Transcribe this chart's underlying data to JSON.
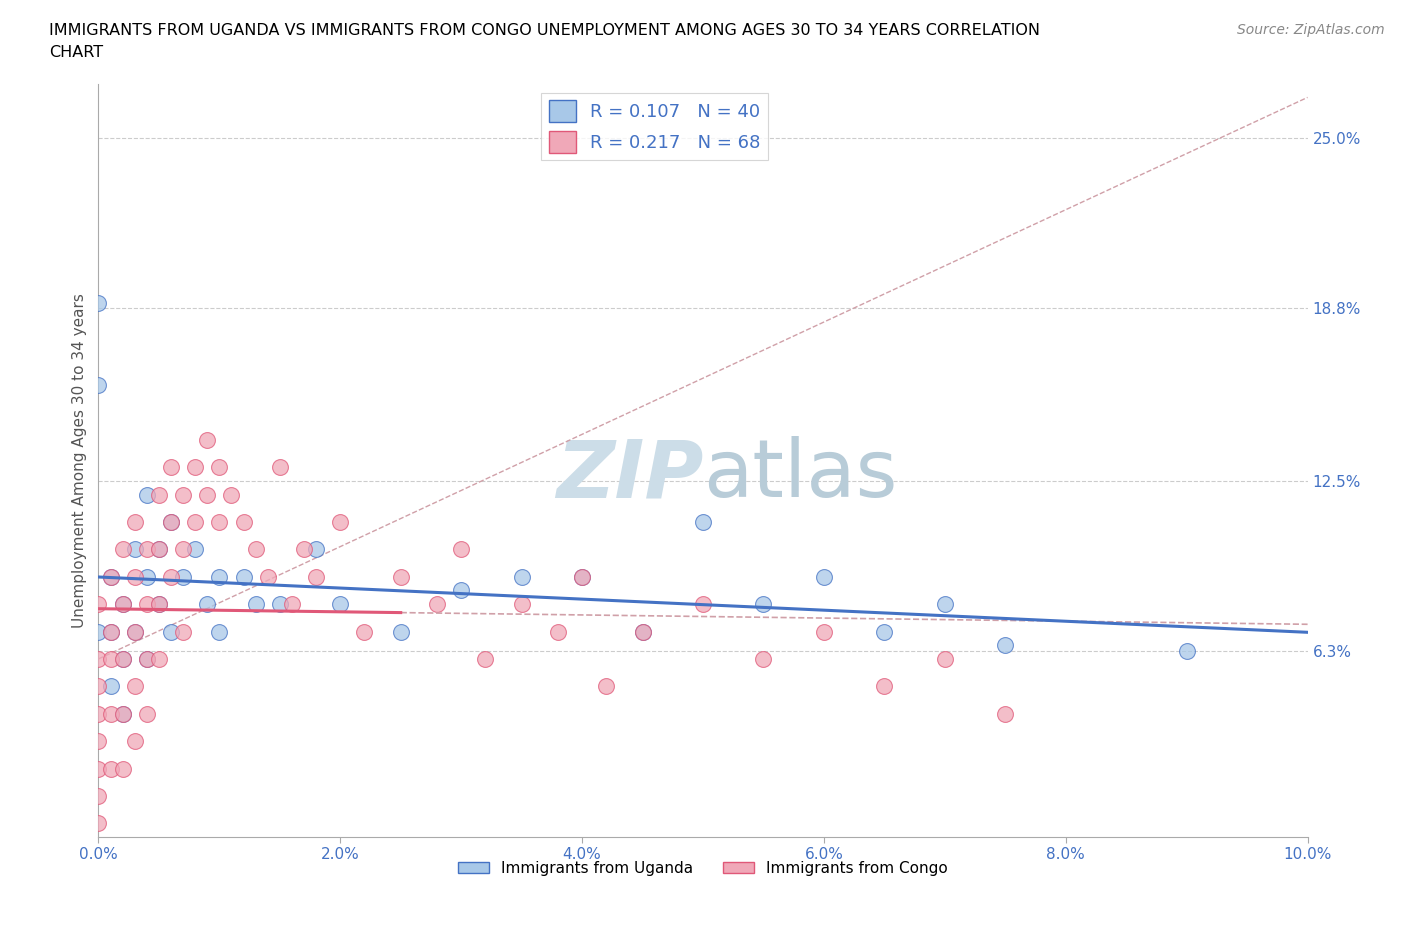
{
  "title_line1": "IMMIGRANTS FROM UGANDA VS IMMIGRANTS FROM CONGO UNEMPLOYMENT AMONG AGES 30 TO 34 YEARS CORRELATION",
  "title_line2": "CHART",
  "source": "Source: ZipAtlas.com",
  "ylabel": "Unemployment Among Ages 30 to 34 years",
  "xlim": [
    0.0,
    0.1
  ],
  "ylim": [
    -0.005,
    0.27
  ],
  "yticks_right": [
    0.063,
    0.125,
    0.188,
    0.25
  ],
  "yticks_right_labels": [
    "6.3%",
    "12.5%",
    "18.8%",
    "25.0%"
  ],
  "color_uganda": "#a8c8e8",
  "color_congo": "#f0a8b8",
  "color_trendline_uganda": "#4472c4",
  "color_trendline_congo": "#e05878",
  "color_refline": "#d0a0a8",
  "watermark_color": "#ccdde8",
  "uganda_x": [
    0.0,
    0.0,
    0.0,
    0.001,
    0.001,
    0.001,
    0.002,
    0.002,
    0.002,
    0.003,
    0.003,
    0.004,
    0.004,
    0.004,
    0.005,
    0.005,
    0.006,
    0.006,
    0.007,
    0.008,
    0.009,
    0.01,
    0.01,
    0.012,
    0.013,
    0.015,
    0.018,
    0.02,
    0.025,
    0.03,
    0.035,
    0.04,
    0.045,
    0.05,
    0.055,
    0.06,
    0.065,
    0.07,
    0.075,
    0.09
  ],
  "uganda_y": [
    0.19,
    0.16,
    0.07,
    0.09,
    0.07,
    0.05,
    0.08,
    0.06,
    0.04,
    0.1,
    0.07,
    0.12,
    0.09,
    0.06,
    0.1,
    0.08,
    0.11,
    0.07,
    0.09,
    0.1,
    0.08,
    0.09,
    0.07,
    0.09,
    0.08,
    0.08,
    0.1,
    0.08,
    0.07,
    0.085,
    0.09,
    0.09,
    0.07,
    0.11,
    0.08,
    0.09,
    0.07,
    0.08,
    0.065,
    0.063
  ],
  "congo_x": [
    0.0,
    0.0,
    0.0,
    0.0,
    0.0,
    0.0,
    0.0,
    0.0,
    0.001,
    0.001,
    0.001,
    0.001,
    0.001,
    0.002,
    0.002,
    0.002,
    0.002,
    0.002,
    0.003,
    0.003,
    0.003,
    0.003,
    0.003,
    0.004,
    0.004,
    0.004,
    0.004,
    0.005,
    0.005,
    0.005,
    0.005,
    0.006,
    0.006,
    0.006,
    0.007,
    0.007,
    0.007,
    0.008,
    0.008,
    0.009,
    0.009,
    0.01,
    0.01,
    0.011,
    0.012,
    0.013,
    0.014,
    0.015,
    0.016,
    0.017,
    0.018,
    0.02,
    0.022,
    0.025,
    0.028,
    0.03,
    0.032,
    0.035,
    0.038,
    0.04,
    0.042,
    0.045,
    0.05,
    0.055,
    0.06,
    0.065,
    0.07,
    0.075
  ],
  "congo_y": [
    0.08,
    0.06,
    0.05,
    0.04,
    0.03,
    0.02,
    0.01,
    0.0,
    0.09,
    0.07,
    0.06,
    0.04,
    0.02,
    0.1,
    0.08,
    0.06,
    0.04,
    0.02,
    0.11,
    0.09,
    0.07,
    0.05,
    0.03,
    0.1,
    0.08,
    0.06,
    0.04,
    0.12,
    0.1,
    0.08,
    0.06,
    0.13,
    0.11,
    0.09,
    0.12,
    0.1,
    0.07,
    0.13,
    0.11,
    0.14,
    0.12,
    0.13,
    0.11,
    0.12,
    0.11,
    0.1,
    0.09,
    0.13,
    0.08,
    0.1,
    0.09,
    0.11,
    0.07,
    0.09,
    0.08,
    0.1,
    0.06,
    0.08,
    0.07,
    0.09,
    0.05,
    0.07,
    0.08,
    0.06,
    0.07,
    0.05,
    0.06,
    0.04
  ],
  "ug_trend_x0": 0.0,
  "ug_trend_y0": 0.073,
  "ug_trend_x1": 0.1,
  "ug_trend_y1": 0.095,
  "co_trend_x0": 0.0,
  "co_trend_y0": 0.082,
  "co_trend_x1": 0.025,
  "co_trend_y1": 0.065,
  "ref_line_x0": 0.0,
  "ref_line_y0": 0.06,
  "ref_line_x1": 0.1,
  "ref_line_y1": 0.265
}
